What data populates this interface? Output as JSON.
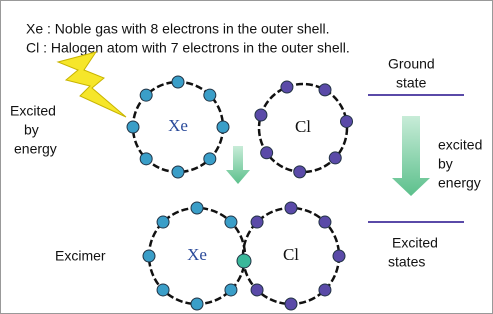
{
  "header": {
    "lines": [
      "Xe : Noble gas with 8 electrons in the outer shell.",
      "Cl : Halogen atom with 7 electrons in the outer shell."
    ]
  },
  "left_label": {
    "lines": [
      "Excited",
      "by",
      "energy"
    ]
  },
  "atoms": [
    {
      "label": "Xe"
    },
    {
      "label": "Cl"
    },
    {
      "label": "Xe"
    },
    {
      "label": "Cl"
    }
  ],
  "excimer_label": "Excimer",
  "ground_state": {
    "lines": [
      "Ground",
      "state"
    ]
  },
  "right_arrow_label": {
    "lines": [
      "excited",
      "by",
      "energy"
    ]
  },
  "excited_states": {
    "lines": [
      "Excited",
      "states"
    ]
  }
}
